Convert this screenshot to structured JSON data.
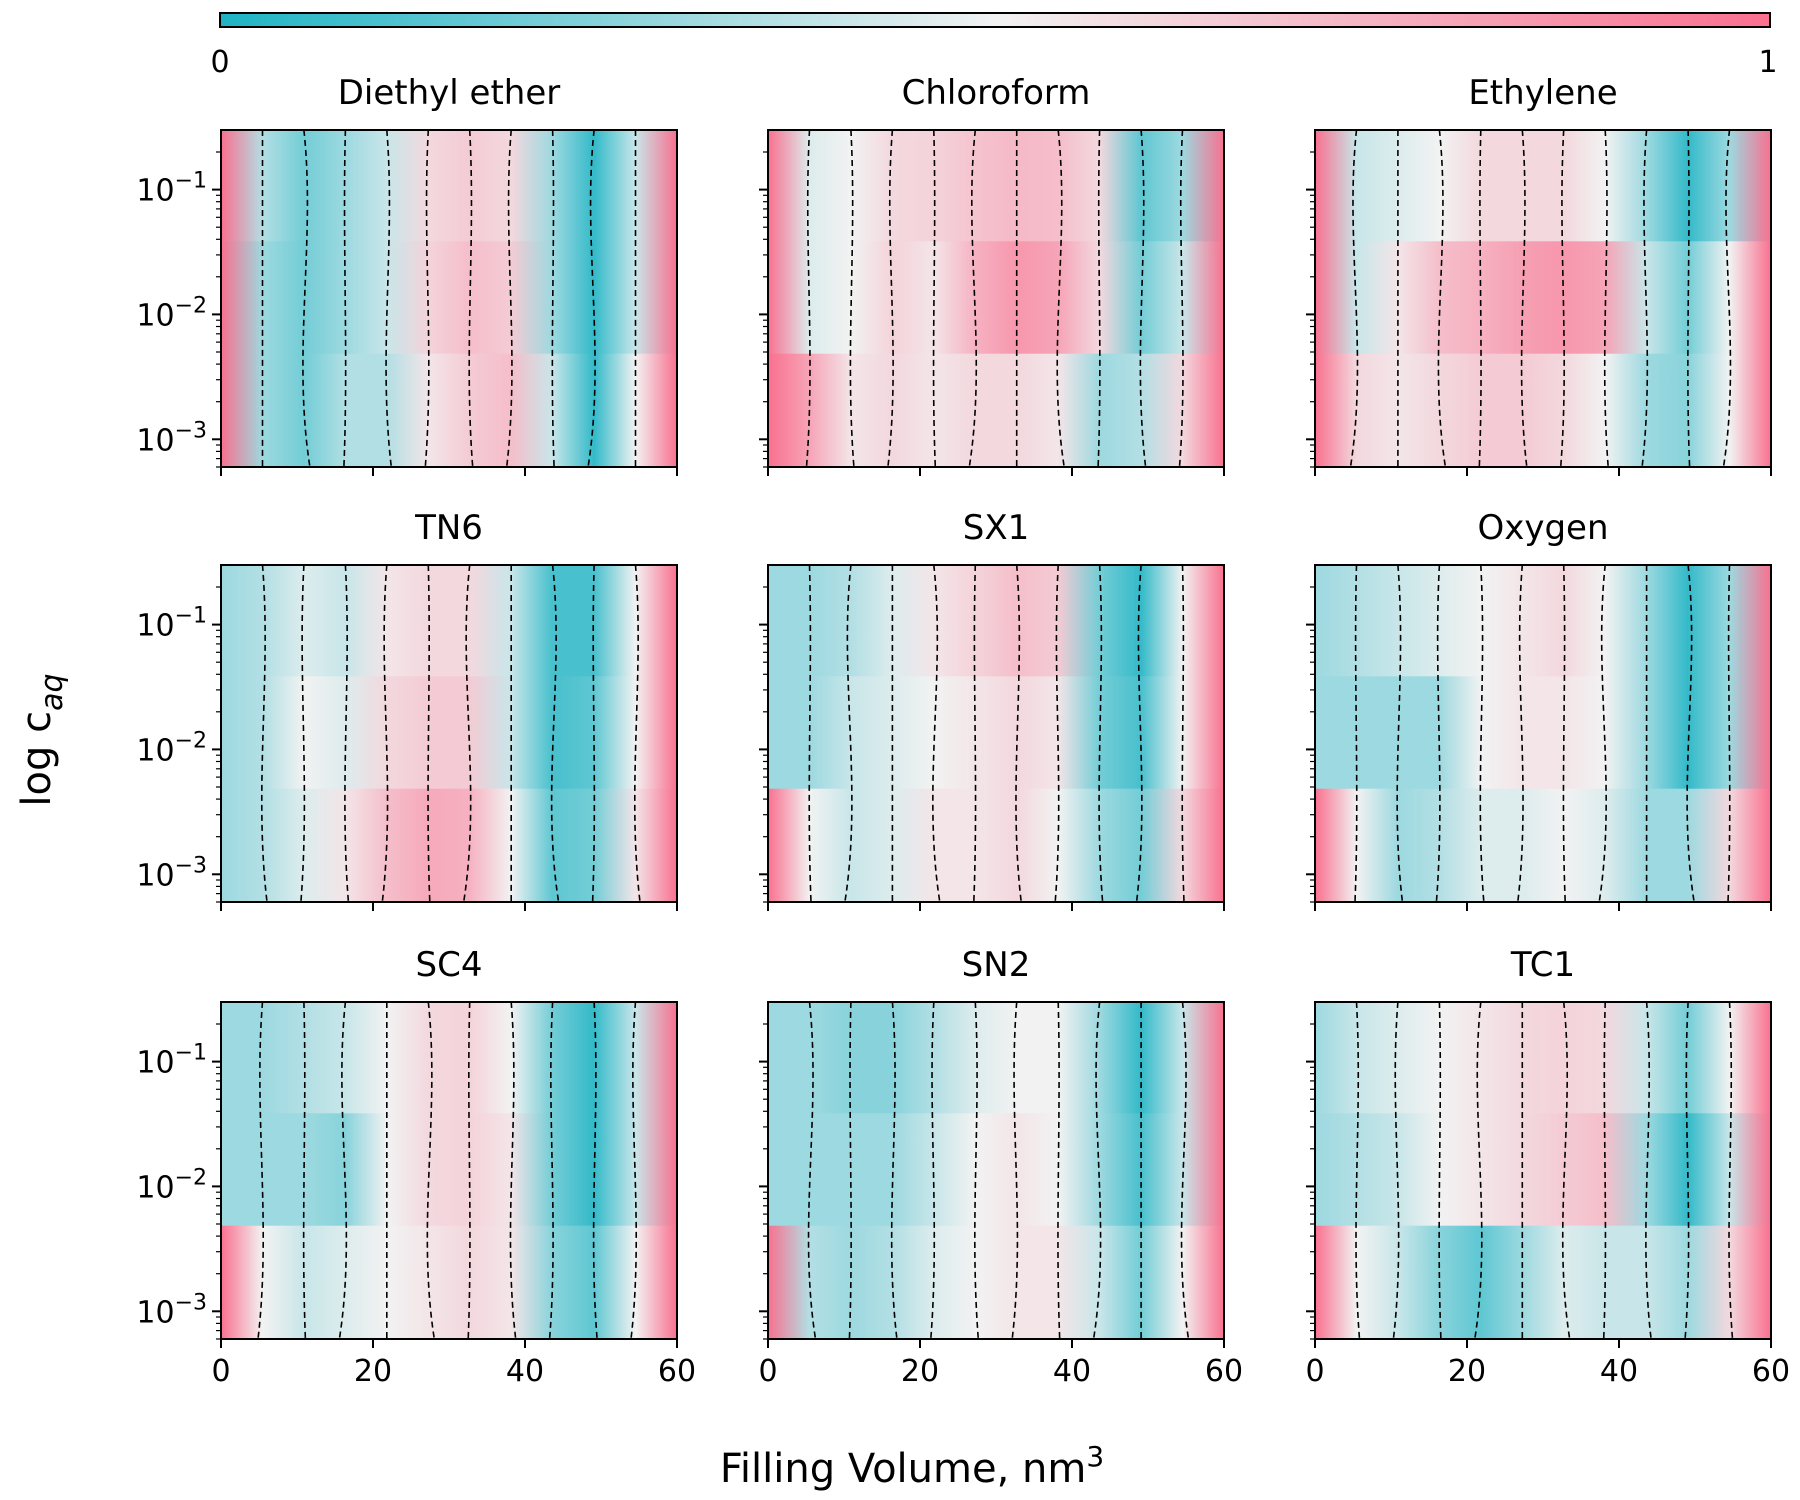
{
  "figure": {
    "colorbar": {
      "min_label": "0",
      "max_label": "1",
      "range": [
        0,
        1
      ],
      "colors": {
        "low": "#1eb4c4",
        "mid": "#f2f2f2",
        "high": "#f9708f"
      }
    },
    "xlabel_main": "Filling Volume, nm",
    "xlabel_sup": "3",
    "ylabel_main": "log c",
    "ylabel_sub": "aq",
    "contour_color": "#000000"
  },
  "chart_data": [
    {
      "type": "heatmap",
      "title": "Diethyl ether",
      "xlim": [
        0,
        60
      ],
      "ylim": [
        0.0006,
        0.3
      ],
      "yscale": "log",
      "xticks": [
        0,
        20,
        40,
        60
      ],
      "yticks": [
        0.001,
        0.01,
        0.1
      ],
      "values": [
        [
          1.0,
          0.35,
          0.2,
          0.3,
          0.4,
          0.6,
          0.65,
          0.6,
          0.3,
          0.05,
          0.4,
          1.0
        ],
        [
          1.0,
          0.3,
          0.2,
          0.3,
          0.4,
          0.62,
          0.7,
          0.65,
          0.3,
          0.05,
          0.4,
          1.0
        ],
        [
          1.0,
          0.3,
          0.2,
          0.35,
          0.35,
          0.55,
          0.65,
          0.7,
          0.4,
          0.05,
          0.5,
          1.0
        ]
      ]
    },
    {
      "type": "heatmap",
      "title": "Chloroform",
      "xlim": [
        0,
        60
      ],
      "ylim": [
        0.0006,
        0.3
      ],
      "yscale": "log",
      "xticks": [
        0,
        20,
        40,
        60
      ],
      "yticks": [
        0.001,
        0.01,
        0.1
      ],
      "values": [
        [
          1.0,
          0.45,
          0.5,
          0.6,
          0.62,
          0.68,
          0.72,
          0.7,
          0.6,
          0.15,
          0.3,
          1.0
        ],
        [
          1.0,
          0.45,
          0.5,
          0.62,
          0.55,
          0.75,
          0.85,
          0.8,
          0.6,
          0.2,
          0.4,
          1.0
        ],
        [
          1.0,
          0.8,
          0.55,
          0.6,
          0.55,
          0.6,
          0.6,
          0.55,
          0.3,
          0.35,
          0.6,
          1.0
        ]
      ]
    },
    {
      "type": "heatmap",
      "title": "Ethylene",
      "xlim": [
        0,
        60
      ],
      "ylim": [
        0.0006,
        0.3
      ],
      "yscale": "log",
      "xticks": [
        0,
        20,
        40,
        60
      ],
      "yticks": [
        0.001,
        0.01,
        0.1
      ],
      "values": [
        [
          1.0,
          0.4,
          0.45,
          0.5,
          0.6,
          0.6,
          0.6,
          0.5,
          0.3,
          0.05,
          0.3,
          1.0
        ],
        [
          1.0,
          0.4,
          0.55,
          0.7,
          0.75,
          0.82,
          0.85,
          0.8,
          0.4,
          0.2,
          0.5,
          1.0
        ],
        [
          1.0,
          0.6,
          0.55,
          0.6,
          0.65,
          0.65,
          0.6,
          0.5,
          0.3,
          0.25,
          0.5,
          1.0
        ]
      ]
    },
    {
      "type": "heatmap",
      "title": "TN6",
      "xlim": [
        0,
        60
      ],
      "ylim": [
        0.0006,
        0.3
      ],
      "yscale": "log",
      "xticks": [
        0,
        20,
        40,
        60
      ],
      "yticks": [
        0.001,
        0.01,
        0.1
      ],
      "values": [
        [
          0.3,
          0.35,
          0.45,
          0.4,
          0.55,
          0.6,
          0.6,
          0.4,
          0.1,
          0.1,
          0.5,
          1.0
        ],
        [
          0.3,
          0.35,
          0.5,
          0.45,
          0.6,
          0.65,
          0.65,
          0.4,
          0.1,
          0.15,
          0.5,
          1.0
        ],
        [
          0.3,
          0.35,
          0.45,
          0.55,
          0.7,
          0.78,
          0.75,
          0.5,
          0.15,
          0.2,
          0.55,
          1.0
        ]
      ]
    },
    {
      "type": "heatmap",
      "title": "SX1",
      "xlim": [
        0,
        60
      ],
      "ylim": [
        0.0006,
        0.3
      ],
      "yscale": "log",
      "xticks": [
        0,
        20,
        40,
        60
      ],
      "yticks": [
        0.001,
        0.01,
        0.1
      ],
      "values": [
        [
          0.3,
          0.3,
          0.35,
          0.45,
          0.55,
          0.62,
          0.7,
          0.65,
          0.2,
          0.05,
          0.5,
          1.0
        ],
        [
          0.3,
          0.3,
          0.4,
          0.45,
          0.5,
          0.55,
          0.6,
          0.55,
          0.2,
          0.1,
          0.5,
          1.0
        ],
        [
          1.0,
          0.5,
          0.4,
          0.45,
          0.55,
          0.55,
          0.6,
          0.5,
          0.3,
          0.2,
          0.6,
          1.0
        ]
      ]
    },
    {
      "type": "heatmap",
      "title": "Oxygen",
      "xlim": [
        0,
        60
      ],
      "ylim": [
        0.0006,
        0.3
      ],
      "yscale": "log",
      "xticks": [
        0,
        20,
        40,
        60
      ],
      "yticks": [
        0.001,
        0.01,
        0.1
      ],
      "values": [
        [
          0.3,
          0.35,
          0.4,
          0.45,
          0.5,
          0.55,
          0.6,
          0.5,
          0.3,
          0.05,
          0.3,
          1.0
        ],
        [
          0.3,
          0.3,
          0.3,
          0.3,
          0.5,
          0.55,
          0.55,
          0.5,
          0.3,
          0.05,
          0.3,
          1.0
        ],
        [
          1.0,
          0.5,
          0.3,
          0.35,
          0.45,
          0.45,
          0.5,
          0.45,
          0.3,
          0.3,
          0.6,
          1.0
        ]
      ]
    },
    {
      "type": "heatmap",
      "title": "SC4",
      "xlim": [
        0,
        60
      ],
      "ylim": [
        0.0006,
        0.3
      ],
      "yscale": "log",
      "xticks": [
        0,
        20,
        40,
        60
      ],
      "yticks": [
        0.001,
        0.01,
        0.1
      ],
      "values": [
        [
          0.3,
          0.3,
          0.35,
          0.4,
          0.5,
          0.6,
          0.62,
          0.5,
          0.2,
          0.05,
          0.4,
          1.0
        ],
        [
          0.3,
          0.3,
          0.3,
          0.25,
          0.5,
          0.6,
          0.62,
          0.55,
          0.2,
          0.05,
          0.4,
          1.0
        ],
        [
          1.0,
          0.5,
          0.4,
          0.45,
          0.5,
          0.55,
          0.6,
          0.55,
          0.25,
          0.15,
          0.5,
          1.0
        ]
      ]
    },
    {
      "type": "heatmap",
      "title": "SN2",
      "xlim": [
        0,
        60
      ],
      "ylim": [
        0.0006,
        0.3
      ],
      "yscale": "log",
      "xticks": [
        0,
        20,
        40,
        60
      ],
      "yticks": [
        0.001,
        0.01,
        0.1
      ],
      "values": [
        [
          0.3,
          0.3,
          0.25,
          0.25,
          0.35,
          0.45,
          0.5,
          0.5,
          0.3,
          0.05,
          0.4,
          1.0
        ],
        [
          0.3,
          0.3,
          0.3,
          0.3,
          0.4,
          0.5,
          0.55,
          0.5,
          0.3,
          0.1,
          0.4,
          1.0
        ],
        [
          1.0,
          0.35,
          0.3,
          0.35,
          0.45,
          0.5,
          0.55,
          0.55,
          0.4,
          0.2,
          0.5,
          1.0
        ]
      ]
    },
    {
      "type": "heatmap",
      "title": "TC1",
      "xlim": [
        0,
        60
      ],
      "ylim": [
        0.0006,
        0.3
      ],
      "yscale": "log",
      "xticks": [
        0,
        20,
        40,
        60
      ],
      "yticks": [
        0.001,
        0.01,
        0.1
      ],
      "values": [
        [
          0.3,
          0.4,
          0.45,
          0.5,
          0.55,
          0.6,
          0.62,
          0.6,
          0.4,
          0.2,
          0.5,
          1.0
        ],
        [
          0.3,
          0.35,
          0.4,
          0.5,
          0.55,
          0.6,
          0.65,
          0.7,
          0.3,
          0.05,
          0.4,
          1.0
        ],
        [
          1.0,
          0.5,
          0.4,
          0.25,
          0.15,
          0.3,
          0.45,
          0.4,
          0.4,
          0.3,
          0.6,
          1.0
        ]
      ]
    }
  ]
}
